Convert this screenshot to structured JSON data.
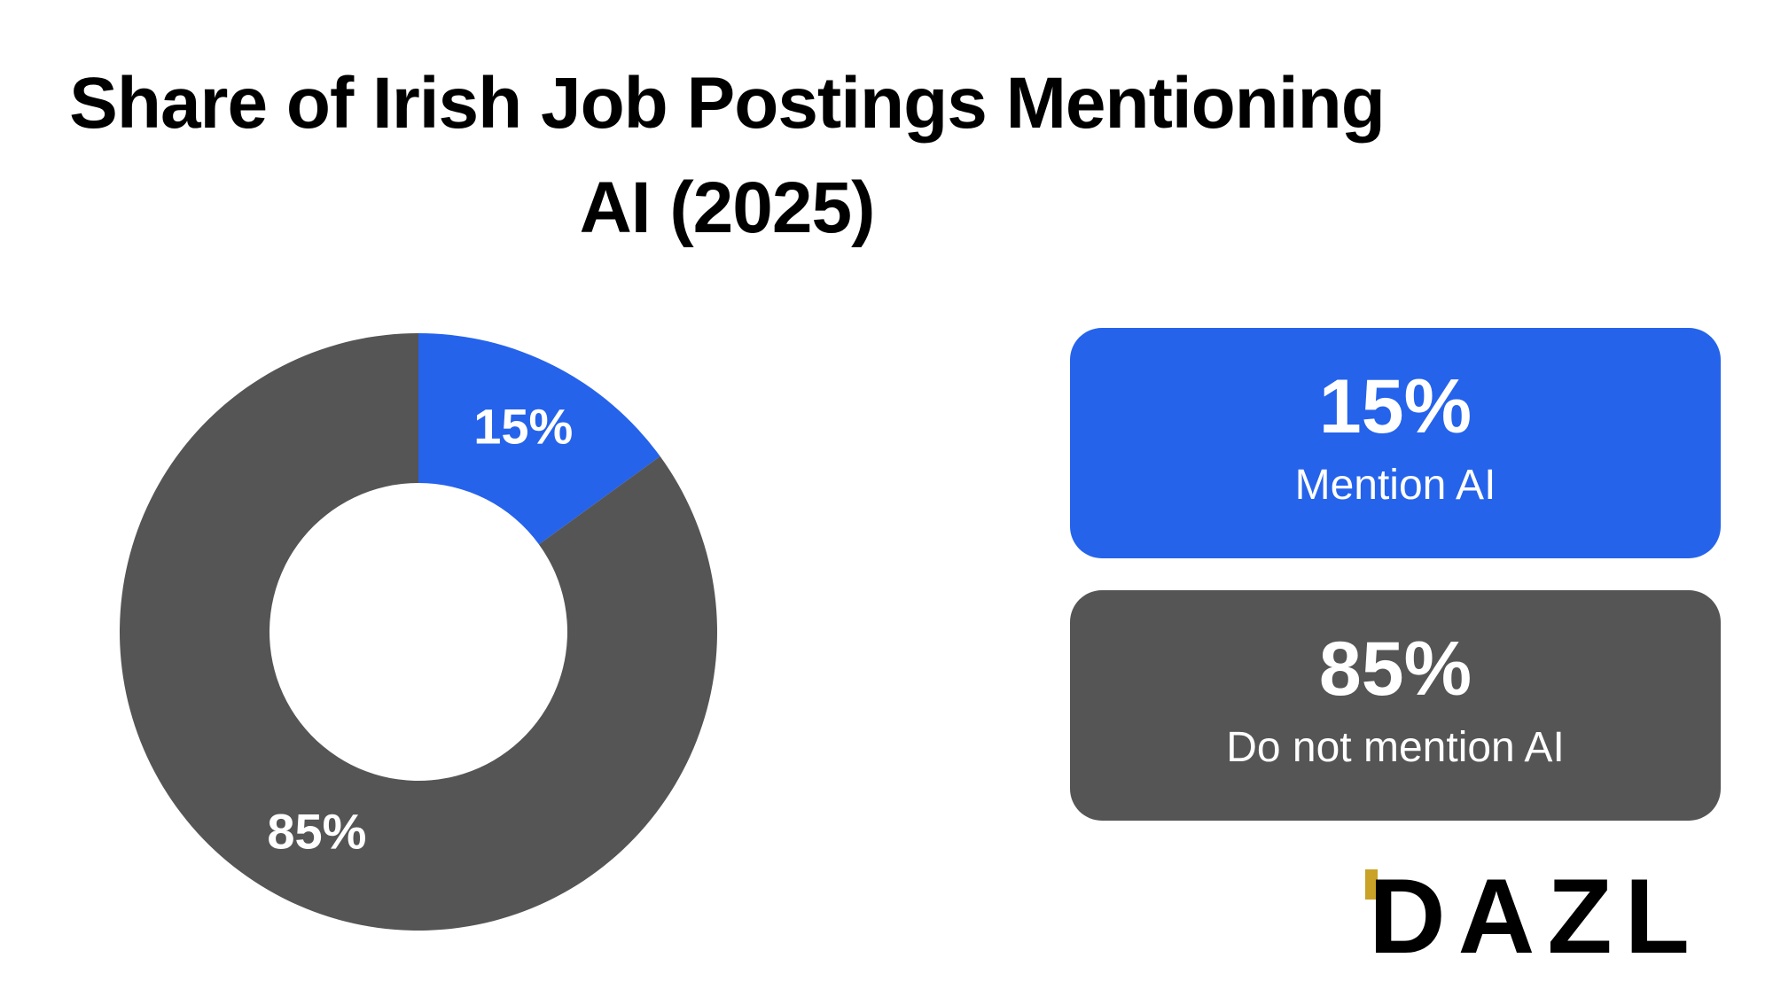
{
  "chart_data": {
    "type": "pie",
    "title": "Share of Irish Job Postings Mentioning AI (2025)",
    "title_lines": [
      "Share of Irish Job Postings Mentioning",
      "AI (2025)"
    ],
    "donut": true,
    "slices": [
      {
        "label": "Mention AI",
        "value": 15,
        "display": "15%",
        "color": "#2563eb"
      },
      {
        "label": "Do not mention AI",
        "value": 85,
        "display": "85%",
        "color": "#555555"
      }
    ]
  },
  "cards": [
    {
      "value": "15%",
      "label": "Mention AI",
      "color": "#2563eb"
    },
    {
      "value": "85%",
      "label": "Do not mention AI",
      "color": "#555555"
    }
  ],
  "brand": {
    "logo_text": "DAZL",
    "logo_accent": "#c9a227"
  }
}
